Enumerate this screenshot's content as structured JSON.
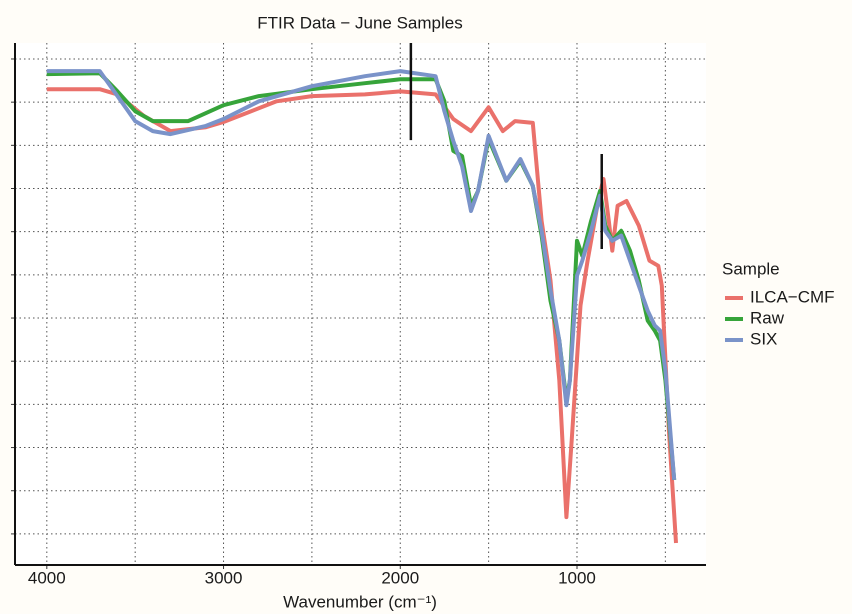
{
  "chart_data": {
    "type": "line",
    "title": "FTIR Data − June Samples",
    "x_label": "Wavenumber (cm⁻¹)",
    "xlim": [
      4180,
      270
    ],
    "xticks": [
      4000,
      3000,
      2000,
      1000
    ],
    "x_minor_grid": [
      3500,
      2500,
      1500,
      500
    ],
    "ylim": [
      0.28,
      12.37
    ],
    "yticks": [
      1,
      2,
      3,
      4,
      5,
      6,
      7,
      8,
      9,
      10,
      11,
      12
    ],
    "grid": true,
    "legend_title": "Sample",
    "legend_position": "right",
    "vlines": [
      {
        "x": 1940,
        "ymin": 10.12,
        "ymax": 12.37
      },
      {
        "x": 860,
        "ymin": 7.6,
        "ymax": 9.8
      }
    ],
    "series": [
      {
        "name": "ILCA−CMF",
        "color": "#ea716b",
        "x": [
          4000,
          3700,
          3600,
          3450,
          3300,
          3100,
          3000,
          2900,
          2700,
          2500,
          2200,
          2000,
          1800,
          1700,
          1600,
          1500,
          1420,
          1350,
          1250,
          1200,
          1150,
          1100,
          1060,
          1030,
          980,
          940,
          880,
          850,
          820,
          800,
          770,
          720,
          650,
          590,
          540,
          520,
          480,
          440
        ],
        "values": [
          11.3,
          11.3,
          11.18,
          10.68,
          10.33,
          10.42,
          10.54,
          10.7,
          11.02,
          11.14,
          11.18,
          11.25,
          11.18,
          10.61,
          10.33,
          10.88,
          10.33,
          10.56,
          10.52,
          8.25,
          6.87,
          4.56,
          1.39,
          3.17,
          6.29,
          7.33,
          8.71,
          9.22,
          8.25,
          7.56,
          8.6,
          8.71,
          8.14,
          7.33,
          7.21,
          6.75,
          3.4,
          0.79
        ]
      },
      {
        "name": "Raw",
        "color": "#36a43a",
        "x": [
          4000,
          3700,
          3600,
          3500,
          3400,
          3200,
          3000,
          2800,
          2500,
          2200,
          2000,
          1800,
          1750,
          1700,
          1650,
          1600,
          1560,
          1500,
          1400,
          1320,
          1250,
          1200,
          1150,
          1100,
          1060,
          1040,
          1000,
          970,
          920,
          870,
          840,
          800,
          750,
          700,
          650,
          600,
          560,
          530,
          500,
          450
        ],
        "values": [
          11.65,
          11.67,
          11.25,
          10.79,
          10.56,
          10.56,
          10.93,
          11.14,
          11.3,
          11.44,
          11.53,
          11.53,
          11.02,
          9.87,
          9.75,
          8.6,
          8.94,
          10.15,
          9.18,
          9.64,
          9.06,
          7.91,
          6.4,
          5.48,
          4.09,
          4.56,
          7.79,
          7.44,
          8.25,
          8.94,
          8.14,
          7.79,
          8.02,
          7.56,
          6.87,
          5.94,
          5.71,
          5.48,
          4.56,
          2.25
        ]
      },
      {
        "name": "SIX",
        "color": "#7a93c9",
        "x": [
          4000,
          3700,
          3600,
          3500,
          3400,
          3300,
          3100,
          3000,
          2800,
          2500,
          2200,
          2000,
          1800,
          1750,
          1700,
          1650,
          1600,
          1560,
          1500,
          1400,
          1320,
          1250,
          1200,
          1150,
          1100,
          1060,
          1040,
          1000,
          970,
          920,
          870,
          840,
          800,
          750,
          700,
          650,
          600,
          560,
          530,
          500,
          450
        ],
        "values": [
          11.72,
          11.72,
          11.14,
          10.56,
          10.33,
          10.26,
          10.45,
          10.61,
          11.02,
          11.37,
          11.6,
          11.72,
          11.6,
          10.79,
          10.1,
          9.52,
          8.48,
          8.94,
          10.22,
          9.18,
          9.68,
          9.06,
          8.02,
          6.64,
          5.48,
          3.98,
          4.56,
          6.98,
          7.33,
          8.02,
          8.83,
          8.02,
          7.79,
          7.91,
          7.33,
          6.75,
          6.17,
          5.83,
          5.71,
          4.79,
          2.25
        ]
      }
    ]
  }
}
